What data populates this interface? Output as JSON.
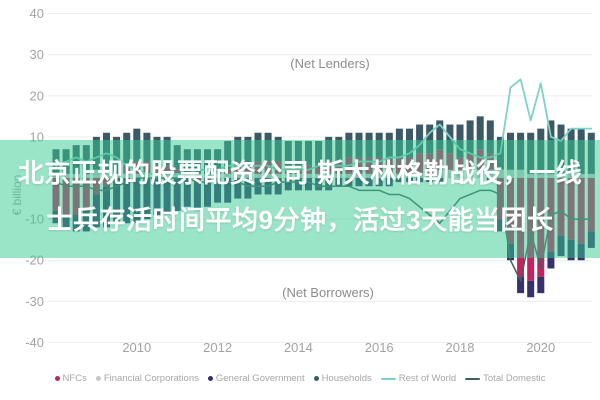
{
  "overlay": {
    "line1": "北京正规的股票配资公司 斯大林格勒战役，一线",
    "line2": "士兵存活时间平均9分钟，活过3天能当团长",
    "band_color": "rgba(53, 201, 145, 0.5)",
    "text_color": "#ffffff"
  },
  "chart_data": {
    "type": "bar",
    "title": "",
    "ylabel": "€ billion",
    "annotations": [
      {
        "text": "(Net Lenders)"
      },
      {
        "text": "(Net Borrowers)"
      }
    ],
    "x_start": 2008,
    "x_step": 0.25,
    "x_tick_labels": [
      "2010",
      "2012",
      "2014",
      "2016",
      "2018",
      "2020"
    ],
    "y_ticks": [
      40,
      30,
      20,
      10,
      -10,
      -20,
      -30,
      -40
    ],
    "ylim": [
      -40,
      40
    ],
    "grid": true,
    "legend_position": "bottom",
    "bar_series": [
      {
        "name": "Financial Corporations",
        "color": "#c9c6c6",
        "values": [
          1,
          1,
          1,
          1,
          2,
          2,
          1,
          1,
          1,
          1,
          1,
          1,
          1,
          1,
          1,
          1,
          1,
          1,
          1,
          1,
          1,
          1,
          1,
          1,
          1,
          1,
          1,
          1,
          1,
          1,
          1,
          1,
          1,
          1,
          1,
          1,
          1,
          1,
          2,
          2,
          2,
          2,
          2,
          2,
          2,
          2,
          2,
          1,
          1,
          1,
          1,
          1,
          1,
          1
        ]
      },
      {
        "name": "NFCs",
        "color": "#c22364",
        "values": [
          -8,
          -9,
          -9,
          -8,
          -4,
          -2,
          0,
          2,
          3,
          3,
          2,
          2,
          1,
          0,
          -1,
          -1,
          0,
          1,
          2,
          2,
          3,
          3,
          3,
          2,
          2,
          2,
          2,
          3,
          3,
          4,
          4,
          4,
          4,
          4,
          4,
          4,
          5,
          5,
          5,
          4,
          3,
          4,
          5,
          4,
          -10,
          -16,
          -24,
          -25,
          -24,
          -18,
          -14,
          -15,
          -16,
          -13
        ]
      },
      {
        "name": "Households",
        "color": "#3b5a66",
        "values": [
          6,
          6,
          7,
          7,
          8,
          9,
          9,
          8,
          8,
          7,
          7,
          7,
          6,
          6,
          6,
          6,
          6,
          7,
          7,
          7,
          7,
          7,
          6,
          6,
          6,
          6,
          6,
          6,
          6,
          6,
          6,
          6,
          6,
          6,
          7,
          7,
          7,
          7,
          7,
          7,
          8,
          8,
          8,
          8,
          8,
          9,
          9,
          10,
          11,
          13,
          12,
          11,
          11,
          10
        ]
      },
      {
        "name": "General Government",
        "color": "#37306b",
        "values": [
          -3,
          -3,
          -4,
          -5,
          -8,
          -10,
          -11,
          -11,
          -11,
          -10,
          -9,
          -9,
          -8,
          -7,
          -7,
          -6,
          -6,
          -6,
          -5,
          -5,
          -4,
          -4,
          -4,
          -3,
          -3,
          -3,
          -3,
          -3,
          -2,
          -2,
          -2,
          -2,
          -2,
          -2,
          -1,
          -1,
          -1,
          -1,
          -1,
          0,
          0,
          0,
          0,
          -1,
          -3,
          -4,
          -4,
          -4,
          -4,
          -4,
          -5,
          -5,
          -4,
          -4
        ]
      }
    ],
    "line_series": [
      {
        "name": "Rest of World",
        "color": "#7ed1c4",
        "values": [
          3,
          4,
          5,
          4,
          5,
          6,
          5,
          3,
          2,
          1,
          1,
          1,
          1,
          1,
          2,
          2,
          2,
          3,
          3,
          3,
          3,
          3,
          2,
          2,
          2,
          2,
          3,
          3,
          3,
          3,
          4,
          4,
          4,
          5,
          5,
          6,
          8,
          11,
          13,
          10,
          7,
          6,
          5,
          5,
          6,
          22,
          24,
          14,
          23,
          10,
          9,
          12,
          12,
          12
        ]
      },
      {
        "name": "Total Domestic",
        "color": "#445e5e",
        "values": [
          -1,
          -2,
          -2,
          -2,
          -3,
          -3,
          -2,
          -1,
          0,
          0,
          0,
          0,
          0,
          0,
          -1,
          -1,
          -1,
          -1,
          -1,
          -2,
          -2,
          -2,
          -1,
          -1,
          -1,
          -1,
          -2,
          -2,
          -2,
          -2,
          -3,
          -3,
          -3,
          -4,
          -4,
          -5,
          -7,
          -9,
          -11,
          -8,
          -5,
          -4,
          -3,
          -3,
          -4,
          -20,
          -25,
          -13,
          -22,
          -9,
          -8,
          -10,
          -10,
          -10
        ]
      }
    ],
    "legend_order": [
      "NFCs",
      "Financial Corporations",
      "General Government",
      "Households",
      "Rest of World",
      "Total Domestic"
    ]
  }
}
